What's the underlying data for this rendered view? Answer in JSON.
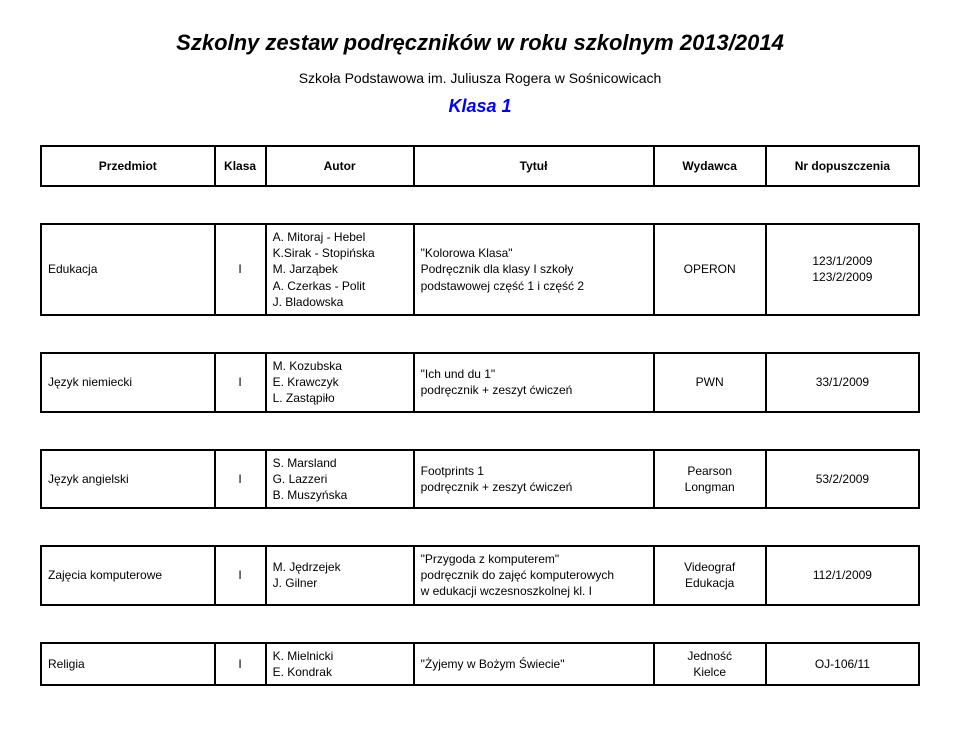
{
  "header": {
    "title": "Szkolny zestaw podręczników w roku szkolnym 2013/2014",
    "subtitle": "Szkoła Podstawowa im. Juliusza Rogera w Sośnicowicach",
    "klasa": "Klasa 1"
  },
  "columns": {
    "subject": "Przedmiot",
    "class": "Klasa",
    "author": "Autor",
    "title": "Tytuł",
    "publisher": "Wydawca",
    "number": "Nr dopuszczenia"
  },
  "rows": [
    {
      "subject": "Edukacja",
      "class": "I",
      "author": "A. Mitoraj - Hebel\nK.Sirak - Stopińska\nM. Jarząbek\nA. Czerkas - Polit\nJ. Bladowska",
      "title": "\"Kolorowa Klasa\"\nPodręcznik dla klasy I szkoły\npodstawowej część 1 i część 2",
      "publisher": "OPERON",
      "number": "123/1/2009\n123/2/2009"
    },
    {
      "subject": "Język niemiecki",
      "class": "I",
      "author": "M. Kozubska\nE. Krawczyk\nL. Zastąpiło",
      "title": "\"Ich und du 1\"\npodręcznik + zeszyt ćwiczeń",
      "publisher": "PWN",
      "number": "33/1/2009"
    },
    {
      "subject": "Język angielski",
      "class": "I",
      "author": "S. Marsland\nG. Lazzeri\nB. Muszyńska",
      "title": "Footprints 1\npodręcznik + zeszyt ćwiczeń",
      "publisher": "Pearson\nLongman",
      "number": "53/2/2009"
    },
    {
      "subject": "Zajęcia komputerowe",
      "class": "I",
      "author": "M. Jędrzejek\nJ. Gilner",
      "title": "\"Przygoda z komputerem\"\npodręcznik do zajęć komputerowych\nw edukacji wczesnoszkolnej kl. I",
      "publisher": "Videograf\nEdukacja",
      "number": "112/1/2009"
    },
    {
      "subject": "Religia",
      "class": "I",
      "author": "K. Mielnicki\nE. Kondrak",
      "title": "\"Żyjemy w Bożym Świecie\"",
      "publisher": "Jedność\nKielce",
      "number": "OJ-106/11"
    }
  ]
}
